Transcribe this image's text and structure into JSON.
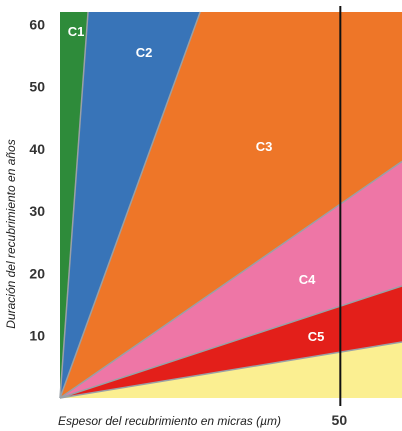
{
  "chart_data": {
    "type": "area",
    "xlabel": "Espesor del recubrimiento en micras (µm)",
    "ylabel": "Duración del recubrimiento en años",
    "xlim": [
      0,
      61
    ],
    "ylim": [
      0,
      62
    ],
    "y_ticks": [
      "10",
      "20",
      "30",
      "40",
      "50",
      "60"
    ],
    "x_ticks": [
      {
        "value": 50,
        "label": "50"
      }
    ],
    "reference_line_x": 50,
    "boundaries": [
      {
        "between": "C1/C2",
        "x": 5,
        "y": 62
      },
      {
        "between": "C2/C3",
        "x": 25,
        "y": 62
      },
      {
        "between": "C3/C4",
        "x": 61,
        "y": 38
      },
      {
        "between": "C4/C5",
        "x": 61,
        "y": 18
      },
      {
        "between": "C5/lower",
        "x": 61,
        "y": 9
      }
    ],
    "regions": [
      {
        "label": "C1",
        "color": "#2e8b3a"
      },
      {
        "label": "C2",
        "color": "#3874b8"
      },
      {
        "label": "C3",
        "color": "#ee7628"
      },
      {
        "label": "C4",
        "color": "#ee76a6"
      },
      {
        "label": "C5",
        "color": "#e31f1a"
      },
      {
        "label": "",
        "color": "#fbef91"
      }
    ],
    "boundary_line_color": "#9aa0a6",
    "reference_line_color": "#111111"
  }
}
